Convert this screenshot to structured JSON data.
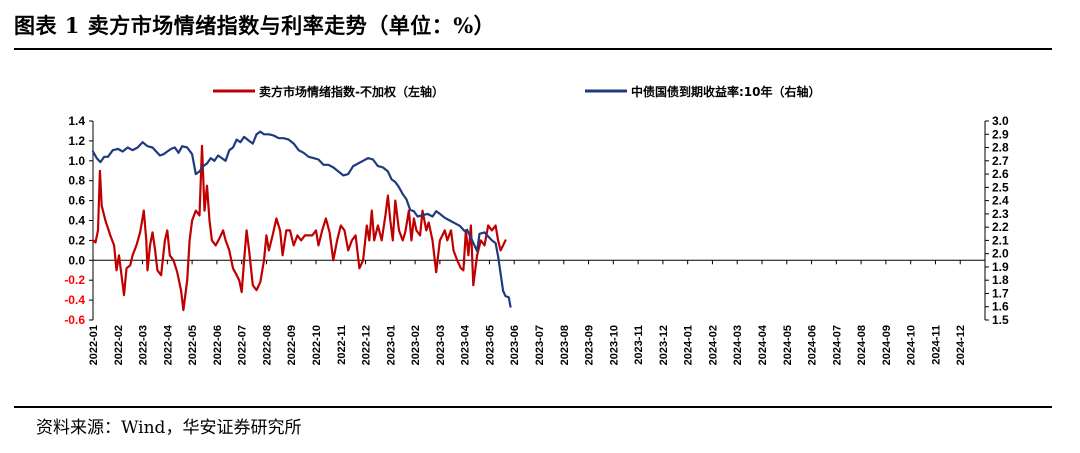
{
  "title": "图表 1 卖方市场情绪指数与利率走势（单位：%）",
  "source": "资料来源：Wind，华安证券研究所",
  "chart_data": {
    "type": "line",
    "title": "图表 1 卖方市场情绪指数与利率走势（单位：%）",
    "x_labels": [
      "2022-01",
      "2022-02",
      "2022-03",
      "2022-04",
      "2022-05",
      "2022-06",
      "2022-07",
      "2022-08",
      "2022-09",
      "2022-10",
      "2022-11",
      "2022-12",
      "2023-01",
      "2023-02",
      "2023-03",
      "2023-04",
      "2023-05",
      "2023-06",
      "2023-07",
      "2023-08",
      "2023-09",
      "2023-10",
      "2023-11",
      "2023-12",
      "2024-01",
      "2024-02",
      "2024-03",
      "2024-04",
      "2024-05",
      "2024-06",
      "2024-07",
      "2024-08",
      "2024-09",
      "2024-10",
      "2024-11",
      "2024-12"
    ],
    "left_axis": {
      "ylim": [
        -0.6,
        1.4
      ],
      "ticks": [
        "1.4",
        "1.2",
        "1.0",
        "0.8",
        "0.6",
        "0.4",
        "0.2",
        "0.0",
        "-0.2",
        "-0.4",
        "-0.6"
      ],
      "negative_color": "#FF0000"
    },
    "right_axis": {
      "ylim": [
        1.5,
        3.0
      ],
      "ticks": [
        "3.0",
        "2.9",
        "2.8",
        "2.7",
        "2.6",
        "2.5",
        "2.4",
        "2.3",
        "2.2",
        "2.1",
        "2.0",
        "1.9",
        "1.8",
        "1.7",
        "1.6",
        "1.5"
      ]
    },
    "series": [
      {
        "name": "卖方市场情绪指数-不加权（左轴）",
        "axis": "left",
        "color": "#C00000",
        "points": [
          [
            0,
            0.2
          ],
          [
            0.1,
            0.18
          ],
          [
            0.2,
            0.3
          ],
          [
            0.28,
            0.9
          ],
          [
            0.35,
            0.55
          ],
          [
            0.5,
            0.4
          ],
          [
            0.7,
            0.25
          ],
          [
            0.85,
            0.15
          ],
          [
            0.95,
            -0.1
          ],
          [
            1.05,
            0.05
          ],
          [
            1.15,
            -0.15
          ],
          [
            1.25,
            -0.35
          ],
          [
            1.35,
            -0.08
          ],
          [
            1.5,
            -0.05
          ],
          [
            1.6,
            0.05
          ],
          [
            1.75,
            0.15
          ],
          [
            1.9,
            0.28
          ],
          [
            2.05,
            0.5
          ],
          [
            2.15,
            0.2
          ],
          [
            2.2,
            -0.1
          ],
          [
            2.3,
            0.15
          ],
          [
            2.4,
            0.28
          ],
          [
            2.5,
            0.12
          ],
          [
            2.6,
            -0.1
          ],
          [
            2.75,
            -0.15
          ],
          [
            2.9,
            0.2
          ],
          [
            3.0,
            0.3
          ],
          [
            3.1,
            0.05
          ],
          [
            3.25,
            0.0
          ],
          [
            3.4,
            -0.12
          ],
          [
            3.55,
            -0.3
          ],
          [
            3.65,
            -0.5
          ],
          [
            3.8,
            -0.2
          ],
          [
            3.9,
            0.2
          ],
          [
            4.0,
            0.4
          ],
          [
            4.15,
            0.5
          ],
          [
            4.3,
            0.45
          ],
          [
            4.4,
            1.15
          ],
          [
            4.5,
            0.5
          ],
          [
            4.6,
            0.75
          ],
          [
            4.7,
            0.4
          ],
          [
            4.8,
            0.2
          ],
          [
            4.95,
            0.15
          ],
          [
            5.1,
            0.22
          ],
          [
            5.25,
            0.3
          ],
          [
            5.35,
            0.2
          ],
          [
            5.5,
            0.1
          ],
          [
            5.65,
            -0.08
          ],
          [
            5.8,
            -0.15
          ],
          [
            5.9,
            -0.2
          ],
          [
            6.0,
            -0.32
          ],
          [
            6.1,
            0.0
          ],
          [
            6.2,
            0.3
          ],
          [
            6.3,
            0.1
          ],
          [
            6.45,
            -0.25
          ],
          [
            6.6,
            -0.3
          ],
          [
            6.75,
            -0.22
          ],
          [
            6.9,
            0.0
          ],
          [
            7.0,
            0.25
          ],
          [
            7.1,
            0.1
          ],
          [
            7.25,
            0.25
          ],
          [
            7.4,
            0.42
          ],
          [
            7.55,
            0.3
          ],
          [
            7.65,
            0.05
          ],
          [
            7.8,
            0.3
          ],
          [
            7.95,
            0.3
          ],
          [
            8.1,
            0.15
          ],
          [
            8.25,
            0.25
          ],
          [
            8.4,
            0.2
          ],
          [
            8.55,
            0.25
          ],
          [
            8.7,
            0.25
          ],
          [
            8.85,
            0.25
          ],
          [
            9.0,
            0.3
          ],
          [
            9.1,
            0.15
          ],
          [
            9.25,
            0.3
          ],
          [
            9.4,
            0.42
          ],
          [
            9.55,
            0.28
          ],
          [
            9.7,
            0.0
          ],
          [
            9.85,
            0.2
          ],
          [
            10.0,
            0.35
          ],
          [
            10.15,
            0.3
          ],
          [
            10.3,
            0.1
          ],
          [
            10.45,
            0.2
          ],
          [
            10.6,
            0.25
          ],
          [
            10.75,
            -0.08
          ],
          [
            10.9,
            0.0
          ],
          [
            11.05,
            0.35
          ],
          [
            11.15,
            0.2
          ],
          [
            11.25,
            0.5
          ],
          [
            11.35,
            0.2
          ],
          [
            11.5,
            0.35
          ],
          [
            11.65,
            0.2
          ],
          [
            11.8,
            0.45
          ],
          [
            11.9,
            0.65
          ],
          [
            12.0,
            0.4
          ],
          [
            12.1,
            0.2
          ],
          [
            12.2,
            0.6
          ],
          [
            12.35,
            0.3
          ],
          [
            12.5,
            0.2
          ],
          [
            12.6,
            0.28
          ],
          [
            12.75,
            0.5
          ],
          [
            12.85,
            0.2
          ],
          [
            12.95,
            0.42
          ],
          [
            13.05,
            0.3
          ],
          [
            13.2,
            0.25
          ],
          [
            13.3,
            0.5
          ],
          [
            13.45,
            0.3
          ],
          [
            13.55,
            0.38
          ],
          [
            13.7,
            0.2
          ],
          [
            13.85,
            -0.12
          ],
          [
            14.0,
            0.2
          ],
          [
            14.1,
            0.25
          ],
          [
            14.2,
            0.3
          ],
          [
            14.3,
            0.2
          ],
          [
            14.45,
            0.3
          ],
          [
            14.55,
            0.1
          ],
          [
            14.7,
            0.0
          ],
          [
            14.85,
            -0.08
          ],
          [
            14.95,
            -0.1
          ],
          [
            15.05,
            0.3
          ],
          [
            15.15,
            0.05
          ],
          [
            15.25,
            0.35
          ],
          [
            15.35,
            -0.25
          ],
          [
            15.5,
            0.05
          ],
          [
            15.65,
            0.2
          ],
          [
            15.8,
            0.15
          ],
          [
            15.95,
            0.35
          ],
          [
            16.1,
            0.3
          ],
          [
            16.25,
            0.35
          ],
          [
            16.35,
            0.2
          ],
          [
            16.45,
            0.1
          ],
          [
            16.55,
            0.15
          ],
          [
            16.65,
            0.2
          ]
        ]
      },
      {
        "name": "中债国债到期收益率:10年（右轴）",
        "axis": "right",
        "color": "#1F3A7D",
        "points": [
          [
            0,
            2.77
          ],
          [
            0.15,
            2.72
          ],
          [
            0.3,
            2.69
          ],
          [
            0.45,
            2.73
          ],
          [
            0.6,
            2.73
          ],
          [
            0.8,
            2.78
          ],
          [
            1.0,
            2.79
          ],
          [
            1.2,
            2.77
          ],
          [
            1.4,
            2.8
          ],
          [
            1.6,
            2.78
          ],
          [
            1.8,
            2.8
          ],
          [
            2.0,
            2.84
          ],
          [
            2.2,
            2.81
          ],
          [
            2.4,
            2.8
          ],
          [
            2.55,
            2.77
          ],
          [
            2.7,
            2.74
          ],
          [
            2.85,
            2.75
          ],
          [
            3.0,
            2.77
          ],
          [
            3.15,
            2.79
          ],
          [
            3.3,
            2.8
          ],
          [
            3.45,
            2.76
          ],
          [
            3.6,
            2.81
          ],
          [
            3.8,
            2.8
          ],
          [
            4.0,
            2.75
          ],
          [
            4.15,
            2.6
          ],
          [
            4.3,
            2.62
          ],
          [
            4.45,
            2.66
          ],
          [
            4.6,
            2.68
          ],
          [
            4.75,
            2.72
          ],
          [
            4.9,
            2.7
          ],
          [
            5.05,
            2.74
          ],
          [
            5.2,
            2.72
          ],
          [
            5.35,
            2.7
          ],
          [
            5.5,
            2.78
          ],
          [
            5.65,
            2.8
          ],
          [
            5.8,
            2.86
          ],
          [
            5.95,
            2.84
          ],
          [
            6.1,
            2.88
          ],
          [
            6.3,
            2.85
          ],
          [
            6.45,
            2.83
          ],
          [
            6.6,
            2.9
          ],
          [
            6.75,
            2.92
          ],
          [
            6.9,
            2.9
          ],
          [
            7.1,
            2.9
          ],
          [
            7.3,
            2.89
          ],
          [
            7.5,
            2.87
          ],
          [
            7.7,
            2.87
          ],
          [
            7.9,
            2.86
          ],
          [
            8.1,
            2.83
          ],
          [
            8.3,
            2.78
          ],
          [
            8.5,
            2.76
          ],
          [
            8.7,
            2.73
          ],
          [
            8.9,
            2.72
          ],
          [
            9.1,
            2.71
          ],
          [
            9.3,
            2.67
          ],
          [
            9.5,
            2.67
          ],
          [
            9.7,
            2.65
          ],
          [
            9.9,
            2.62
          ],
          [
            10.1,
            2.59
          ],
          [
            10.3,
            2.6
          ],
          [
            10.5,
            2.66
          ],
          [
            10.7,
            2.68
          ],
          [
            10.9,
            2.7
          ],
          [
            11.1,
            2.72
          ],
          [
            11.3,
            2.71
          ],
          [
            11.5,
            2.66
          ],
          [
            11.7,
            2.65
          ],
          [
            11.9,
            2.62
          ],
          [
            12.05,
            2.56
          ],
          [
            12.2,
            2.54
          ],
          [
            12.35,
            2.5
          ],
          [
            12.5,
            2.45
          ],
          [
            12.65,
            2.41
          ],
          [
            12.8,
            2.33
          ],
          [
            12.95,
            2.32
          ],
          [
            13.1,
            2.28
          ],
          [
            13.3,
            2.29
          ],
          [
            13.5,
            2.3
          ],
          [
            13.7,
            2.28
          ],
          [
            13.85,
            2.32
          ],
          [
            14.0,
            2.3
          ],
          [
            14.2,
            2.27
          ],
          [
            14.4,
            2.25
          ],
          [
            14.6,
            2.23
          ],
          [
            14.8,
            2.21
          ],
          [
            15.0,
            2.17
          ],
          [
            15.1,
            2.18
          ],
          [
            15.25,
            2.12
          ],
          [
            15.4,
            2.06
          ],
          [
            15.5,
            2.02
          ],
          [
            15.6,
            2.15
          ],
          [
            15.8,
            2.16
          ],
          [
            16.0,
            2.12
          ],
          [
            16.1,
            2.1
          ],
          [
            16.25,
            2.08
          ],
          [
            16.35,
            1.98
          ],
          [
            16.45,
            1.85
          ],
          [
            16.55,
            1.72
          ],
          [
            16.65,
            1.68
          ],
          [
            16.78,
            1.67
          ],
          [
            16.85,
            1.6
          ]
        ]
      }
    ]
  }
}
